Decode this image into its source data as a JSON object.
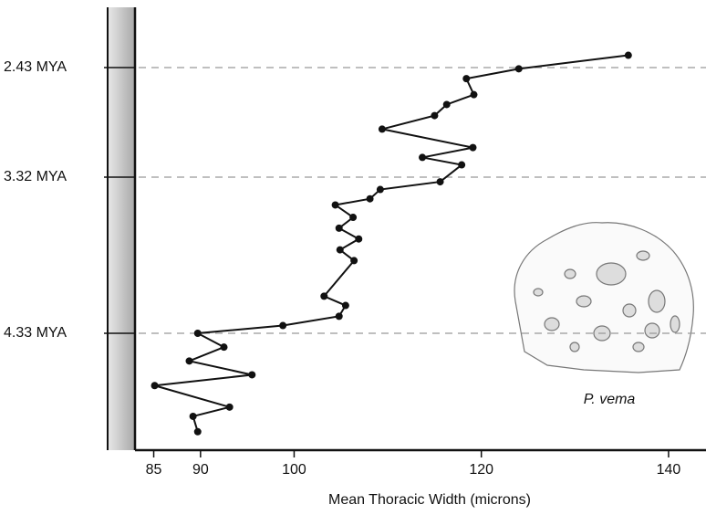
{
  "chart_data": {
    "type": "line",
    "x_label": "Mean Thoracic Width (microns)",
    "annotation": "P. vema",
    "x": [
      135.7,
      124.0,
      118.4,
      119.2,
      116.3,
      115.0,
      109.4,
      119.1,
      113.7,
      117.9,
      115.6,
      109.2,
      108.1,
      104.4,
      106.3,
      104.8,
      106.9,
      104.9,
      106.4,
      103.2,
      105.5,
      104.8,
      98.8,
      89.7,
      92.5,
      88.8,
      95.5,
      85.1,
      93.1,
      89.2,
      89.7
    ],
    "series": [
      {
        "color": "#111111",
        "values": [
          2.33,
          2.44,
          2.52,
          2.65,
          2.73,
          2.82,
          2.93,
          3.08,
          3.16,
          3.22,
          3.35,
          3.4,
          3.46,
          3.5,
          3.58,
          3.65,
          3.72,
          3.79,
          3.86,
          4.09,
          4.15,
          4.22,
          4.28,
          4.33,
          4.42,
          4.51,
          4.6,
          4.67,
          4.81,
          4.87,
          4.97
        ]
      }
    ],
    "xlim": [
      83,
      144
    ],
    "xticks": [
      85,
      90,
      100,
      120,
      140
    ],
    "ylim": [
      1.94,
      5.09
    ],
    "yticks": [
      {
        "value": 2.43,
        "label": "2.43 MYA"
      },
      {
        "value": 3.32,
        "label": "3.32 MYA"
      },
      {
        "value": 4.33,
        "label": "4.33 MYA"
      }
    ],
    "grid": true,
    "y_inverted": true
  }
}
